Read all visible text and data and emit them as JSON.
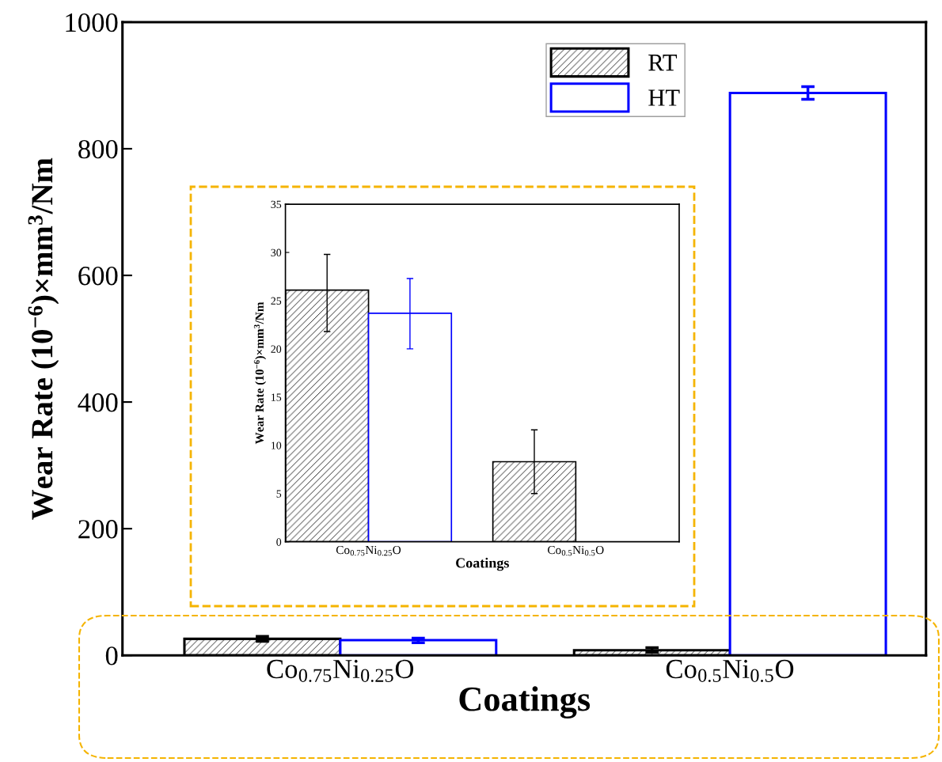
{
  "chart_data": [
    {
      "type": "bar",
      "xlabel": "Coatings",
      "ylabel": "Wear Rate (10$^{−6}$)×mm$^{3}$/Nm",
      "categories": [
        "Co$_{0.75}$Ni$_{0.25}$O",
        "Co$_{0.5}$Ni$_{0.5}$O"
      ],
      "series": [
        {
          "name": "RT",
          "color": "#000000",
          "values": [
            26,
            8
          ],
          "errors": [
            [
              22,
              30
            ],
            [
              5,
              12
            ]
          ]
        },
        {
          "name": "HT",
          "color": "#0000ff",
          "values": [
            24,
            888
          ],
          "errors": [
            [
              20,
              27
            ],
            [
              878,
              898
            ]
          ]
        }
      ],
      "ylim": [
        0,
        1000
      ],
      "yticks": [
        0,
        200,
        400,
        600,
        800,
        1000
      ],
      "grid": false,
      "legend": "top right"
    },
    {
      "type": "bar",
      "xlabel": "Coatings",
      "ylabel": "Wear Rate (10$^{−6}$)×mm$^{3}$/Nm",
      "categories": [
        "Co$_{0.75}$Ni$_{0.25}$O",
        "Co$_{0.5}$Ni$_{0.5}$O"
      ],
      "series": [
        {
          "color": "#000000",
          "values": [
            26.1,
            8.3
          ],
          "errors": [
            [
              21.8,
              29.8
            ],
            [
              5,
              11.6
            ]
          ]
        },
        {
          "color": "#0000ff",
          "values": [
            23.7,
            null
          ],
          "errors": [
            [
              20,
              27.3
            ],
            null
          ]
        }
      ],
      "ylim": [
        0,
        35
      ],
      "yticks": [
        0,
        5,
        10,
        15,
        20,
        25,
        30,
        35
      ],
      "grid": false,
      "legend": false
    }
  ]
}
